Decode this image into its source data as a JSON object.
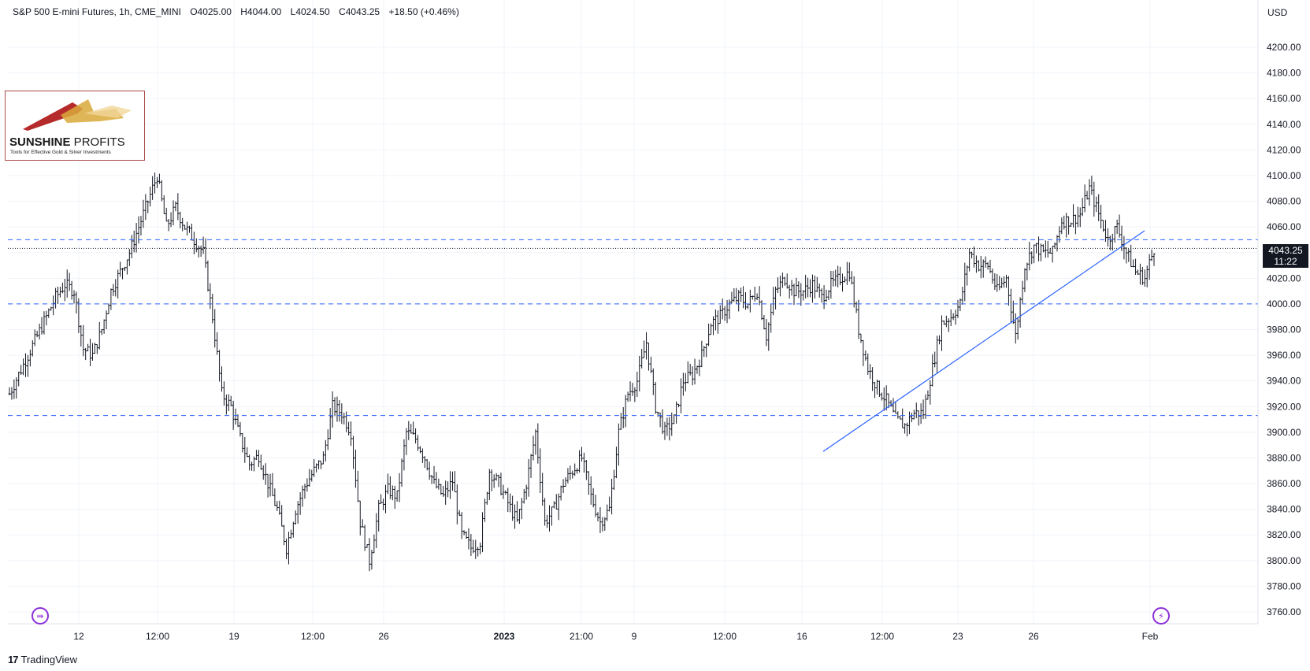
{
  "header": {
    "symbol": "S&P 500 E-mini Futures, 1h, CME_MINI",
    "open": "O4025.00",
    "high": "H4044.00",
    "low": "L4024.50",
    "close": "C4043.25",
    "change": "+18.50 (+0.46%)"
  },
  "currency": "USD",
  "price_tag": {
    "price": "4043.25",
    "countdown": "11:22"
  },
  "logo": {
    "name_bold": "SUNSHINE",
    "name_rest": " PROFITS",
    "tagline": "Tools for Effective Gold & Silver Investments"
  },
  "footer": {
    "brand": "TradingView",
    "mark": "17"
  },
  "icons": {
    "go_to_realtime": "arrow-circle-icon",
    "replay": "lightning-icon",
    "brand": "tradingview-logo-icon"
  },
  "colors": {
    "candles": "#131722",
    "levels": "#2962ff",
    "trendline": "#2962ff",
    "logo_border": "#a94a4a"
  },
  "chart_data": {
    "type": "candlestick",
    "title": "S&P 500 E-mini Futures, 1h, CME_MINI",
    "ylabel": "USD",
    "ylim": [
      3750,
      4230
    ],
    "y_ticks": [
      3760,
      3780,
      3800,
      3820,
      3840,
      3860,
      3880,
      3900,
      3920,
      3940,
      3960,
      3980,
      4000,
      4020,
      4040,
      4060,
      4080,
      4100,
      4120,
      4140,
      4160,
      4180,
      4200
    ],
    "x_tick_labels": [
      "12",
      "12:00",
      "19",
      "12:00",
      "26",
      "2023",
      "21:00",
      "9",
      "12:00",
      "16",
      "12:00",
      "23",
      "26",
      "Feb"
    ],
    "horizontal_levels": [
      4050,
      4000,
      3913
    ],
    "last_price_line": 4043.25,
    "trendline": {
      "from": 3885,
      "to": 4057
    },
    "grid": true,
    "price_path": [
      3930,
      3945,
      3960,
      3975,
      3990,
      4005,
      4015,
      4010,
      3965,
      3960,
      3980,
      4010,
      4025,
      4040,
      4060,
      4080,
      4100,
      4060,
      4075,
      4060,
      4050,
      4040,
      3990,
      3930,
      3920,
      3895,
      3875,
      3882,
      3860,
      3840,
      3810,
      3840,
      3858,
      3870,
      3880,
      3920,
      3915,
      3900,
      3830,
      3800,
      3840,
      3855,
      3850,
      3900,
      3895,
      3880,
      3860,
      3850,
      3862,
      3820,
      3810,
      3815,
      3870,
      3860,
      3845,
      3830,
      3860,
      3900,
      3830,
      3840,
      3860,
      3870,
      3880,
      3850,
      3830,
      3840,
      3900,
      3930,
      3940,
      3970,
      3920,
      3900,
      3910,
      3940,
      3945,
      3960,
      3985,
      3990,
      4000,
      4005,
      4000,
      4010,
      3975,
      4010,
      4020,
      4010,
      4010,
      4015,
      4005,
      4015,
      4020,
      4025,
      3980,
      3950,
      3935,
      3925,
      3910,
      3905,
      3915,
      3915,
      3950,
      3985,
      3990,
      4000,
      4040,
      4030,
      4030,
      4010,
      4020,
      3975,
      4030,
      4045,
      4040,
      4040,
      4065,
      4065,
      4070,
      4090,
      4070,
      4050,
      4060,
      4040,
      4025,
      4020,
      4043
    ]
  }
}
